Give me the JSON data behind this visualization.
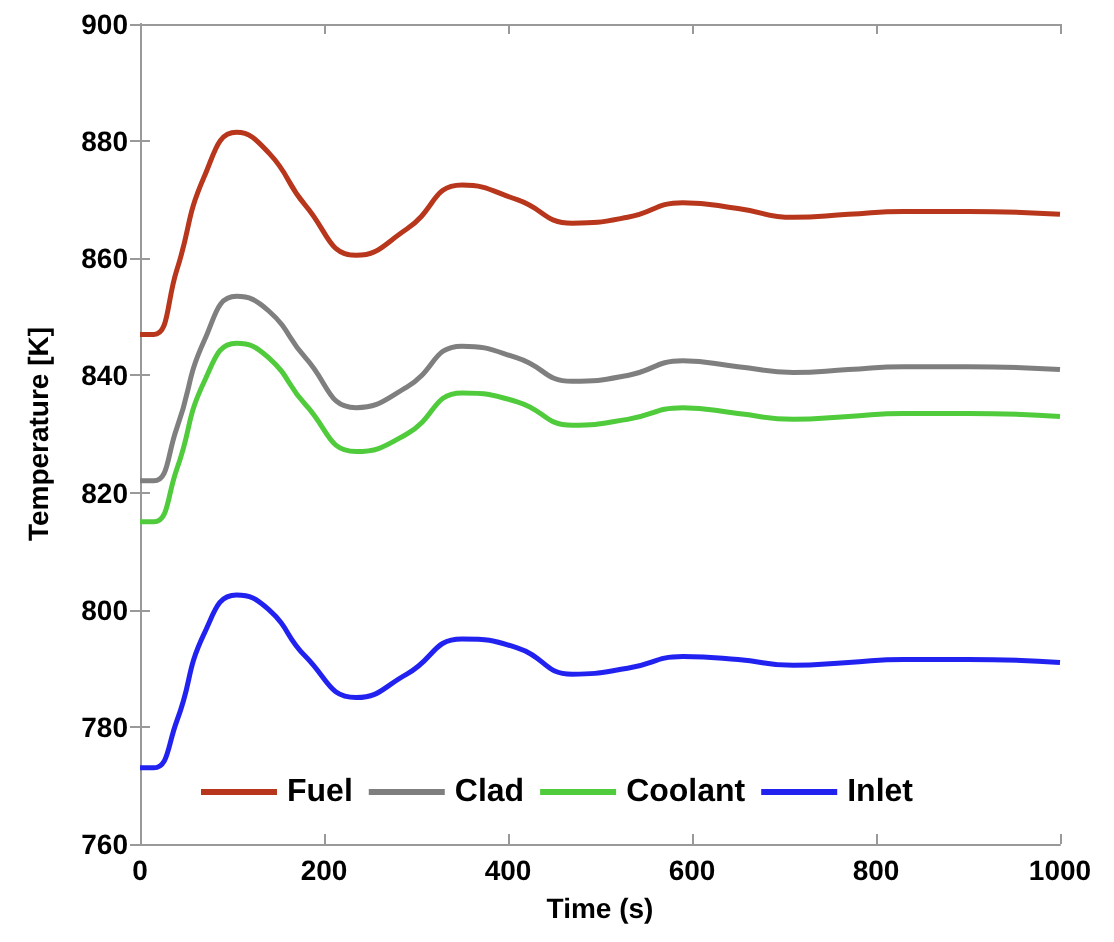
{
  "chart_data": {
    "type": "line",
    "xlabel": "Time (s)",
    "ylabel": "Temperature [K]",
    "x": [
      0,
      15,
      40,
      70,
      105,
      140,
      180,
      235,
      290,
      350,
      410,
      470,
      530,
      590,
      650,
      710,
      770,
      830,
      900,
      1000
    ],
    "series": [
      {
        "name": "Fuel",
        "color": "#b8361c",
        "values": [
          847,
          847,
          858,
          874,
          881.5,
          878,
          869,
          860.5,
          865,
          872.5,
          870,
          866,
          867,
          869.5,
          868.5,
          867,
          867.5,
          868,
          868,
          867.5
        ]
      },
      {
        "name": "Clad",
        "color": "#7f7f7f",
        "values": [
          822,
          822,
          831,
          846,
          853.5,
          851,
          843,
          834.5,
          838,
          845,
          843,
          839,
          840,
          842.5,
          841.5,
          840.5,
          841,
          841.5,
          841.5,
          841
        ]
      },
      {
        "name": "Coolant",
        "color": "#4fcb3c",
        "values": [
          815,
          815,
          824,
          839,
          845.5,
          843,
          835,
          827,
          830,
          837,
          835.5,
          831.5,
          832.5,
          834.5,
          833.5,
          832.5,
          833,
          833.5,
          833.5,
          833
        ]
      },
      {
        "name": "Inlet",
        "color": "#2222f0",
        "values": [
          773,
          773,
          781,
          796,
          802.5,
          800,
          792,
          785,
          789,
          795,
          793.5,
          789,
          790,
          792,
          791.5,
          790.5,
          791,
          791.5,
          791.5,
          791
        ]
      }
    ],
    "xlim": [
      0,
      1000
    ],
    "xticks": [
      0,
      200,
      400,
      600,
      800,
      1000
    ],
    "ylim": [
      760,
      900
    ],
    "yticks": [
      760,
      780,
      800,
      820,
      840,
      860,
      880,
      900
    ],
    "grid": false,
    "legend": "bottom",
    "marker": "none",
    "line_style": "solid"
  }
}
